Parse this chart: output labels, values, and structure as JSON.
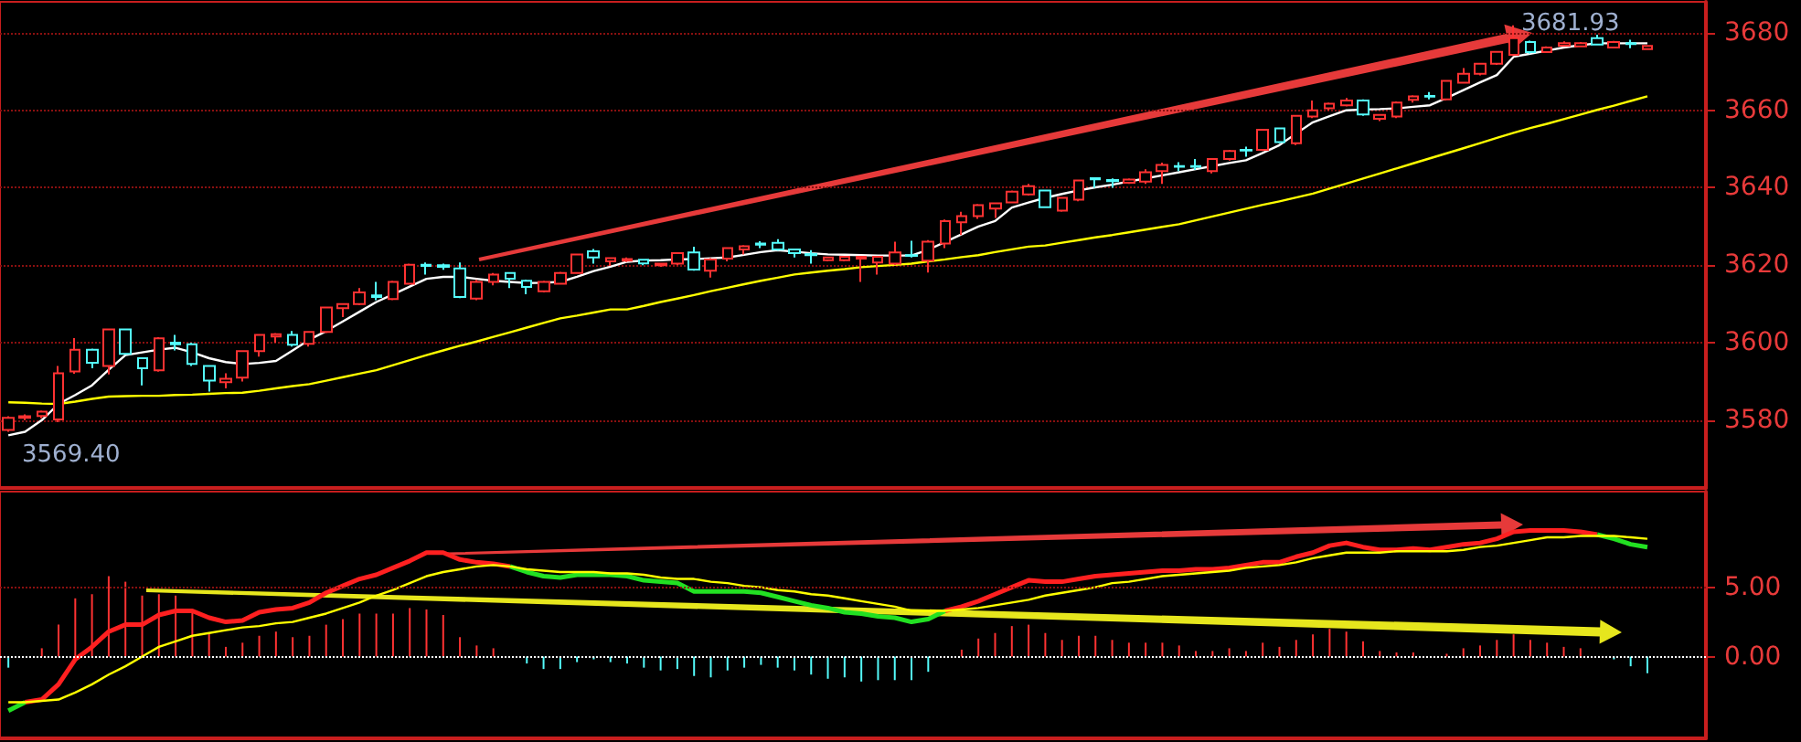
{
  "chart_data": [
    {
      "type": "candlestick",
      "categories": [
        null,
        null,
        null,
        null,
        null,
        null,
        null,
        null,
        null,
        null,
        null,
        null,
        null,
        null,
        null,
        null,
        null,
        null,
        null,
        null,
        null,
        null,
        null,
        null,
        null,
        null,
        null,
        null,
        null,
        null,
        null,
        null,
        null,
        null,
        null,
        null,
        null,
        null,
        null,
        null,
        null,
        null,
        null,
        null,
        null,
        null,
        null,
        null,
        null,
        null,
        null,
        null,
        null,
        null,
        null,
        null,
        null,
        null,
        null,
        null,
        null,
        null,
        null,
        null,
        null,
        null,
        null,
        null,
        null,
        null,
        null,
        null,
        null,
        null,
        null,
        null,
        null,
        null,
        null,
        null,
        null,
        null,
        null,
        null,
        null,
        null,
        null,
        null,
        null,
        null,
        null,
        null,
        null,
        null,
        null,
        null,
        null,
        null,
        null
      ],
      "ohlc": [
        [
          3577.5,
          3581,
          3577,
          3580.6
        ],
        [
          3580.6,
          3581.5,
          3580,
          3581
        ],
        [
          3581.1,
          3582.5,
          3580.5,
          3582.2
        ],
        [
          3580.2,
          3594,
          3579.5,
          3592.1
        ],
        [
          3592.6,
          3601.2,
          3592,
          3598.2
        ],
        [
          3598.2,
          3598.5,
          3593.4,
          3594.8
        ],
        [
          3594,
          3603.5,
          3591.8,
          3603.4
        ],
        [
          3603.4,
          3603.5,
          3597,
          3597.1
        ],
        [
          3596,
          3596.2,
          3589,
          3593.4
        ],
        [
          3592.9,
          3601.4,
          3592.5,
          3601.1
        ],
        [
          3600,
          3602,
          3598,
          3599.6
        ],
        [
          3599.6,
          3600,
          3594,
          3594.5
        ],
        [
          3594,
          3594.2,
          3587.4,
          3590.2
        ],
        [
          3589.8,
          3592.1,
          3588.2,
          3590.7
        ],
        [
          3591,
          3598,
          3590,
          3597.8
        ],
        [
          3597.8,
          3602.2,
          3596.4,
          3602
        ],
        [
          3601.6,
          3602.5,
          3600,
          3602.2
        ],
        [
          3602,
          3603,
          3599,
          3599.5
        ],
        [
          3599.7,
          3603,
          3599,
          3602.8
        ],
        [
          3602.8,
          3609.3,
          3602.5,
          3609.1
        ],
        [
          3608.9,
          3610.2,
          3606.6,
          3610
        ],
        [
          3610,
          3614.1,
          3609.7,
          3613
        ],
        [
          3612.2,
          3615.7,
          3611,
          3611.8
        ],
        [
          3611.3,
          3616,
          3611,
          3615.7
        ],
        [
          3615.2,
          3620.4,
          3615,
          3620.1
        ],
        [
          3620.1,
          3620.7,
          3617.6,
          3619.8
        ],
        [
          3620,
          3620.4,
          3618.8,
          3619.6
        ],
        [
          3619.2,
          3620.7,
          3611.5,
          3611.8
        ],
        [
          3611.4,
          3616.2,
          3611,
          3615.7
        ],
        [
          3615.7,
          3618,
          3614.8,
          3617.6
        ],
        [
          3618,
          3618.2,
          3614.1,
          3616.5
        ],
        [
          3616,
          3616.3,
          3612.5,
          3614.4
        ],
        [
          3613.3,
          3616,
          3613,
          3615.7
        ],
        [
          3615.2,
          3618.3,
          3615,
          3618
        ],
        [
          3618,
          3623,
          3617.8,
          3622.8
        ],
        [
          3623.6,
          3624.2,
          3620.4,
          3622
        ],
        [
          3621,
          3622,
          3619.8,
          3621.8
        ],
        [
          3621.2,
          3622,
          3620.8,
          3621.6
        ],
        [
          3621.4,
          3621.6,
          3620,
          3620.5
        ],
        [
          3620,
          3620.6,
          3619.6,
          3620.4
        ],
        [
          3620.4,
          3623.3,
          3620,
          3623.1
        ],
        [
          3623.3,
          3624.8,
          3618.6,
          3618.9
        ],
        [
          3618.6,
          3621.8,
          3616.8,
          3621.5
        ],
        [
          3621.7,
          3624.6,
          3621,
          3624.4
        ],
        [
          3624.1,
          3625.2,
          3622.8,
          3624.9
        ],
        [
          3625.6,
          3626.2,
          3624.4,
          3625.3
        ],
        [
          3625.8,
          3626.7,
          3623.8,
          3624.1
        ],
        [
          3624.1,
          3624.3,
          3622,
          3623.1
        ],
        [
          3622.9,
          3623.9,
          3620.4,
          3622.6
        ],
        [
          3621.3,
          3622.2,
          3621,
          3622
        ],
        [
          3621.3,
          3622.4,
          3621,
          3622.2
        ],
        [
          3621.7,
          3622.3,
          3615.7,
          3622.2
        ],
        [
          3620.7,
          3622.4,
          3617.6,
          3622.2
        ],
        [
          3620.4,
          3626.1,
          3620,
          3623.3
        ],
        [
          3622.6,
          3626.3,
          3622,
          3622.4
        ],
        [
          3621.2,
          3626.5,
          3618.1,
          3626.1
        ],
        [
          3625.6,
          3631.8,
          3624.4,
          3631.4
        ],
        [
          3631.1,
          3633.8,
          3627.8,
          3632.7
        ],
        [
          3632.7,
          3635.8,
          3632,
          3635.5
        ],
        [
          3634.6,
          3636.2,
          3632.2,
          3636
        ],
        [
          3636.2,
          3639.3,
          3636,
          3639
        ],
        [
          3638.3,
          3641,
          3638,
          3640.4
        ],
        [
          3639.3,
          3639.5,
          3634.8,
          3635
        ],
        [
          3634.1,
          3637.6,
          3633.8,
          3637.4
        ],
        [
          3636.9,
          3642,
          3636.5,
          3641.9
        ],
        [
          3642.5,
          3642.7,
          3640,
          3642.2
        ],
        [
          3642,
          3642.4,
          3640,
          3641.7
        ],
        [
          3641.3,
          3642.4,
          3641,
          3642.1
        ],
        [
          3641.6,
          3644.8,
          3641,
          3644
        ],
        [
          3644.3,
          3646.5,
          3641,
          3645.9
        ],
        [
          3645.6,
          3646.6,
          3644.3,
          3645.4
        ],
        [
          3645.6,
          3647.4,
          3644.6,
          3645.4
        ],
        [
          3644.3,
          3647.6,
          3643.7,
          3647.4
        ],
        [
          3647.4,
          3649.8,
          3647,
          3649.5
        ],
        [
          3649.8,
          3650.6,
          3648,
          3649.6
        ],
        [
          3649.8,
          3655.2,
          3649.5,
          3655
        ],
        [
          3655.3,
          3655.5,
          3651.5,
          3651.8
        ],
        [
          3651.5,
          3658.8,
          3651,
          3658.6
        ],
        [
          3658.4,
          3662.5,
          3658,
          3660
        ],
        [
          3660.5,
          3662,
          3660,
          3661.7
        ],
        [
          3661.3,
          3663.2,
          3661,
          3662.5
        ],
        [
          3662.5,
          3662.8,
          3658.6,
          3658.9
        ],
        [
          3657.8,
          3659,
          3657.2,
          3658.8
        ],
        [
          3658.4,
          3662.3,
          3658,
          3662
        ],
        [
          3662.7,
          3663.9,
          3662,
          3663.6
        ],
        [
          3663.7,
          3664.7,
          3662.8,
          3663.5
        ],
        [
          3662.8,
          3667.8,
          3662.5,
          3667.6
        ],
        [
          3667.1,
          3670.9,
          3666.9,
          3669.4
        ],
        [
          3669.4,
          3672.2,
          3669,
          3672
        ],
        [
          3672,
          3675.3,
          3671.7,
          3675.1
        ],
        [
          3674.3,
          3681.93,
          3674,
          3678.6
        ],
        [
          3677.6,
          3678,
          3674.6,
          3675
        ],
        [
          3675,
          3676.5,
          3674.8,
          3676.2
        ],
        [
          3676.7,
          3677.8,
          3676.5,
          3677.3
        ],
        [
          3676.5,
          3677.6,
          3676.3,
          3677.3
        ],
        [
          3678.6,
          3679.5,
          3676.8,
          3677
        ],
        [
          3676.2,
          3677.9,
          3676,
          3677.6
        ],
        [
          3677.3,
          3678.2,
          3676,
          3677.1
        ],
        [
          3675.8,
          3676.7,
          3675.7,
          3676.6
        ]
      ],
      "colors": [
        "#ff3232",
        "#ff3232",
        "#ff3232",
        "#ff3232",
        "#ff3232",
        "#54fcfc",
        "#ff3232",
        "#54fcfc",
        "#54fcfc",
        "#ff3232",
        "#54fcfc",
        "#54fcfc",
        "#54fcfc",
        "#ff3232",
        "#ff3232",
        "#ff3232",
        "#ff3232",
        "#54fcfc",
        "#ff3232",
        "#ff3232",
        "#ff3232",
        "#ff3232",
        "#54fcfc",
        "#ff3232",
        "#ff3232",
        "#54fcfc",
        "#54fcfc",
        "#54fcfc",
        "#ff3232",
        "#ff3232",
        "#54fcfc",
        "#54fcfc",
        "#ff3232",
        "#ff3232",
        "#ff3232",
        "#54fcfc",
        "#ff3232",
        "#ff3232",
        "#54fcfc",
        "#ff3232",
        "#ff3232",
        "#54fcfc",
        "#ff3232",
        "#ff3232",
        "#ff3232",
        "#54fcfc",
        "#54fcfc",
        "#54fcfc",
        "#54fcfc",
        "#ff3232",
        "#ff3232",
        "#ff3232",
        "#ff3232",
        "#ff3232",
        "#54fcfc",
        "#ff3232",
        "#ff3232",
        "#ff3232",
        "#ff3232",
        "#ff3232",
        "#ff3232",
        "#ff3232",
        "#54fcfc",
        "#ff3232",
        "#ff3232",
        "#54fcfc",
        "#54fcfc",
        "#ff3232",
        "#ff3232",
        "#ff3232",
        "#54fcfc",
        "#54fcfc",
        "#ff3232",
        "#ff3232",
        "#54fcfc",
        "#ff3232",
        "#54fcfc",
        "#ff3232",
        "#ff3232",
        "#ff3232",
        "#ff3232",
        "#54fcfc",
        "#ff3232",
        "#ff3232",
        "#ff3232",
        "#54fcfc",
        "#ff3232",
        "#ff3232",
        "#ff3232",
        "#ff3232",
        "#ff3232",
        "#54fcfc",
        "#ff3232",
        "#ff3232",
        "#ff3232",
        "#54fcfc",
        "#ff3232",
        "#54fcfc",
        "#ff3232"
      ],
      "series": [
        {
          "type": "line",
          "color": "#ffffff",
          "values": [
            3576.1,
            3577,
            3580,
            3584.2,
            3586.5,
            3589,
            3593,
            3596.8,
            3597.5,
            3598.2,
            3598.7,
            3597.5,
            3596,
            3595,
            3594.5,
            3594.8,
            3595.3,
            3598,
            3600.8,
            3603,
            3605.5,
            3608,
            3610.5,
            3612.5,
            3614.5,
            3616.5,
            3617,
            3617,
            3616.5,
            3616,
            3615.7,
            3615.4,
            3615.5,
            3615.7,
            3617,
            3618.5,
            3619.6,
            3620.9,
            3621.2,
            3621.3,
            3621.5,
            3621.6,
            3621.8,
            3622,
            3622.7,
            3623.4,
            3623.9,
            3623.5,
            3623.1,
            3622.8,
            3622.7,
            3622.6,
            3622.5,
            3622.5,
            3622.5,
            3624,
            3626,
            3628,
            3630,
            3631.4,
            3634.9,
            3636.2,
            3637.4,
            3638.4,
            3639.3,
            3640.1,
            3640.8,
            3641.6,
            3642.4,
            3643.2,
            3644,
            3644.8,
            3645.6,
            3646.4,
            3647.1,
            3649,
            3651,
            3654,
            3656.9,
            3658.5,
            3660,
            3660.2,
            3660.3,
            3660.5,
            3660.9,
            3661.3,
            3663.2,
            3665.2,
            3667.2,
            3669.1,
            3673.8,
            3674.6,
            3675.4,
            3676.2,
            3676.8,
            3677.3,
            3677.3,
            3677.3,
            3677.3
          ]
        },
        {
          "type": "line",
          "color": "#ffff00",
          "values": [
            3584.6,
            3584.5,
            3584.3,
            3584.2,
            3584.8,
            3585.5,
            3586.1,
            3586.2,
            3586.3,
            3586.3,
            3586.5,
            3586.6,
            3586.8,
            3587,
            3587.1,
            3587.6,
            3588.2,
            3588.8,
            3589.3,
            3590.2,
            3591.1,
            3592,
            3592.9,
            3594.2,
            3595.5,
            3596.8,
            3598,
            3599.2,
            3600.3,
            3601.5,
            3602.7,
            3603.9,
            3605.1,
            3606.3,
            3607,
            3607.8,
            3608.6,
            3608.6,
            3609.5,
            3610.5,
            3611.4,
            3612.3,
            3613.3,
            3614.2,
            3615.1,
            3616,
            3616.8,
            3617.6,
            3618.1,
            3618.6,
            3619,
            3619.5,
            3619.8,
            3620.1,
            3620.4,
            3621,
            3621.5,
            3622.1,
            3622.6,
            3623.4,
            3624.1,
            3624.8,
            3625.1,
            3625.8,
            3626.5,
            3627.2,
            3627.8,
            3628.5,
            3629.2,
            3629.9,
            3630.6,
            3631.6,
            3632.6,
            3633.6,
            3634.6,
            3635.6,
            3636.5,
            3637.5,
            3638.5,
            3639.8,
            3641.1,
            3642.4,
            3643.7,
            3645,
            3646.3,
            3647.6,
            3648.9,
            3650.2,
            3651.5,
            3652.9,
            3654.2,
            3655.4,
            3656.5,
            3657.7,
            3658.9,
            3660.1,
            3661.2,
            3662.4,
            3663.6
          ]
        }
      ],
      "ylim": [
        3562.5,
        3688
      ],
      "yticks": [
        3580,
        3600,
        3620,
        3640,
        3660,
        3680
      ],
      "grid": "y",
      "tick_labels": "y",
      "marker": "none",
      "annotations": [
        "3681.93",
        "3569.40"
      ]
    },
    {
      "type": "bar",
      "stacked": true,
      "categories": [
        null,
        null,
        null,
        null,
        null,
        null,
        null,
        null,
        null,
        null,
        null,
        null,
        null,
        null,
        null,
        null,
        null,
        null,
        null,
        null,
        null,
        null,
        null,
        null,
        null,
        null,
        null,
        null,
        null,
        null,
        null,
        null,
        null,
        null,
        null,
        null,
        null,
        null,
        null,
        null,
        null,
        null,
        null,
        null,
        null,
        null,
        null,
        null,
        null,
        null,
        null,
        null,
        null,
        null,
        null,
        null,
        null,
        null,
        null,
        null,
        null,
        null,
        null,
        null,
        null,
        null,
        null,
        null,
        null,
        null,
        null,
        null,
        null,
        null,
        null,
        null,
        null,
        null,
        null,
        null,
        null,
        null,
        null,
        null,
        null,
        null,
        null,
        null,
        null,
        null,
        null,
        null,
        null,
        null,
        null,
        null,
        null,
        null,
        null
      ],
      "series": [
        {
          "type": "bar",
          "color": "#ff3232",
          "values": [
            null,
            null,
            0.6,
            2.3,
            4.2,
            4.5,
            5.8,
            5.4,
            4.4,
            4.5,
            4.4,
            3.3,
            1.7,
            0.7,
            1.0,
            1.5,
            1.8,
            1.4,
            1.5,
            2.3,
            2.7,
            3.1,
            3.1,
            3.1,
            3.5,
            3.4,
            3.0,
            1.4,
            0.8,
            0.6,
            null,
            null,
            null,
            null,
            null,
            null,
            null,
            null,
            null,
            null,
            null,
            null,
            null,
            null,
            null,
            null,
            null,
            null,
            null,
            null,
            null,
            null,
            null,
            null,
            null,
            null,
            null,
            0.5,
            1.3,
            1.7,
            2.2,
            2.3,
            1.7,
            1.2,
            1.5,
            1.5,
            1.2,
            1.0,
            1.0,
            1.0,
            0.8,
            0.4,
            0.4,
            0.6,
            0.4,
            1.0,
            0.7,
            1.2,
            1.6,
            2.0,
            1.8,
            1.1,
            0.4,
            0.3,
            0.3,
            null,
            0.2,
            0.6,
            0.8,
            1.2,
            1.6,
            1.2,
            1.0,
            0.7,
            0.6,
            null,
            null,
            null,
            null
          ]
        },
        {
          "type": "bar",
          "color": "#54fcfc",
          "values": [
            -0.8,
            null,
            null,
            null,
            null,
            null,
            null,
            null,
            null,
            null,
            null,
            null,
            null,
            null,
            null,
            null,
            null,
            null,
            null,
            null,
            null,
            null,
            null,
            null,
            null,
            null,
            null,
            null,
            null,
            null,
            null,
            -0.5,
            -0.9,
            -0.9,
            -0.4,
            -0.2,
            -0.4,
            -0.5,
            -0.8,
            -1.0,
            -0.9,
            -1.4,
            -1.5,
            -1.0,
            -0.8,
            -0.6,
            -0.8,
            -1.0,
            -1.3,
            -1.6,
            -1.5,
            -1.8,
            -1.7,
            -1.7,
            -1.7,
            -1.1,
            null,
            null,
            null,
            null,
            null,
            null,
            null,
            null,
            null,
            null,
            null,
            null,
            null,
            null,
            null,
            null,
            null,
            null,
            null,
            null,
            null,
            null,
            null,
            null,
            null,
            null,
            null,
            null,
            null,
            null,
            null,
            null,
            null,
            null,
            null,
            null,
            null,
            null,
            null,
            null,
            -0.2,
            -0.7,
            -1.2
          ]
        },
        {
          "type": "line",
          "color": "#ff2020",
          "values": [
            null,
            -3.3,
            -3.1,
            -2.0,
            -0.2,
            0.7,
            1.8,
            2.3,
            2.3,
            3.0,
            3.3,
            3.3,
            2.8,
            2.5,
            2.6,
            3.2,
            3.4,
            3.5,
            3.9,
            4.6,
            5.1,
            5.6,
            5.9,
            6.4,
            6.9,
            7.5,
            7.5,
            7.0,
            6.8,
            6.7,
            6.5,
            null,
            null,
            null,
            null,
            null,
            null,
            null,
            null,
            null,
            null,
            null,
            null,
            null,
            null,
            null,
            null,
            null,
            null,
            null,
            null,
            null,
            null,
            null,
            null,
            null,
            3.3,
            3.6,
            4.0,
            4.5,
            5.0,
            5.5,
            5.4,
            5.4,
            5.6,
            5.8,
            5.9,
            6.0,
            6.1,
            6.2,
            6.2,
            6.3,
            6.3,
            6.4,
            6.6,
            6.8,
            6.8,
            7.2,
            7.5,
            8.0,
            8.2,
            7.9,
            7.7,
            7.7,
            7.8,
            7.7,
            7.9,
            8.1,
            8.2,
            8.5,
            9.0,
            9.1,
            9.1,
            9.1,
            9.0,
            8.8,
            null,
            null,
            null
          ]
        },
        {
          "type": "line",
          "color": "#22e022",
          "values": [
            -3.9,
            -3.3,
            null,
            null,
            null,
            null,
            null,
            null,
            null,
            null,
            null,
            null,
            null,
            null,
            null,
            null,
            null,
            null,
            null,
            null,
            null,
            null,
            null,
            null,
            null,
            null,
            null,
            null,
            null,
            null,
            6.5,
            6.1,
            5.8,
            5.7,
            5.9,
            5.9,
            5.9,
            5.8,
            5.5,
            5.4,
            5.3,
            4.7,
            4.7,
            4.7,
            4.7,
            4.6,
            4.3,
            4.0,
            3.7,
            3.5,
            3.2,
            3.1,
            2.9,
            2.8,
            2.5,
            2.7,
            3.3,
            null,
            null,
            null,
            null,
            null,
            null,
            null,
            null,
            null,
            null,
            null,
            null,
            null,
            null,
            null,
            null,
            null,
            null,
            null,
            null,
            null,
            null,
            null,
            null,
            null,
            null,
            null,
            null,
            null,
            null,
            null,
            null,
            null,
            null,
            null,
            null,
            null,
            null,
            8.8,
            8.5,
            8.1,
            7.9
          ]
        },
        {
          "type": "line",
          "color": "#ffff00",
          "values": [
            -3.3,
            -3.3,
            -3.2,
            -3.1,
            -2.6,
            -2.0,
            -1.3,
            -0.7,
            0.0,
            0.7,
            1.1,
            1.5,
            1.7,
            1.9,
            2.1,
            2.2,
            2.4,
            2.5,
            2.8,
            3.1,
            3.5,
            3.9,
            4.4,
            4.8,
            5.3,
            5.8,
            6.1,
            6.3,
            6.5,
            6.6,
            6.5,
            6.3,
            6.2,
            6.1,
            6.1,
            6.1,
            6.0,
            6.0,
            5.9,
            5.7,
            5.6,
            5.6,
            5.4,
            5.3,
            5.1,
            5.0,
            4.8,
            4.7,
            4.5,
            4.4,
            4.2,
            4.0,
            3.8,
            3.6,
            3.3,
            3.3,
            3.3,
            3.4,
            3.5,
            3.7,
            3.9,
            4.1,
            4.4,
            4.6,
            4.8,
            5.0,
            5.3,
            5.4,
            5.6,
            5.8,
            5.9,
            6.0,
            6.1,
            6.2,
            6.4,
            6.5,
            6.6,
            6.8,
            7.1,
            7.3,
            7.5,
            7.5,
            7.5,
            7.6,
            7.6,
            7.6,
            7.6,
            7.7,
            7.9,
            8.0,
            8.2,
            8.4,
            8.6,
            8.6,
            8.7,
            8.7,
            8.7,
            8.6,
            8.5
          ]
        }
      ],
      "ylim": [
        -5.9,
        11.9
      ],
      "yticks": [
        {
          "value": 0,
          "label": "0.00"
        },
        {
          "value": 5,
          "label": "5.00"
        }
      ],
      "tick_labels": "y",
      "marker": "none",
      "ref_lines": [
        {
          "axis": "y",
          "value": 0,
          "color": "#ffffff",
          "line_style": "dotted"
        },
        {
          "axis": "y",
          "value": 5,
          "color": "#8a1010",
          "line_style": "dotted"
        }
      ]
    }
  ]
}
